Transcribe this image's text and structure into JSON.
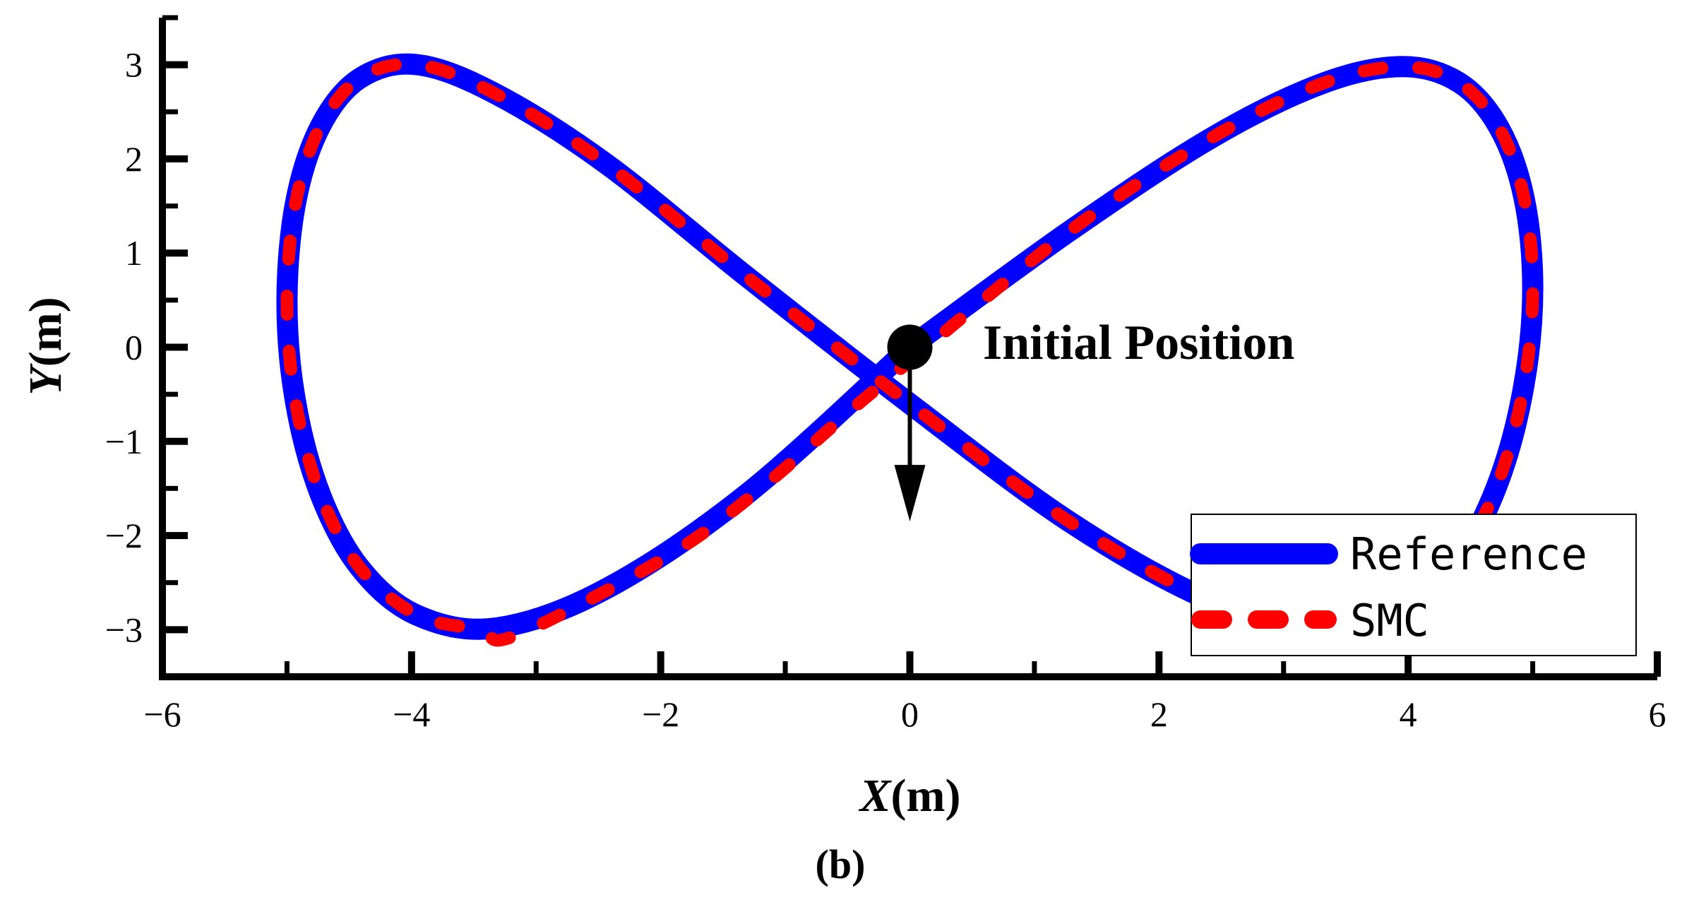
{
  "chart_data": {
    "type": "line",
    "title": "",
    "xlabel": {
      "var": "X",
      "unit": "(m)"
    },
    "ylabel": {
      "var": "Y",
      "unit": "(m)"
    },
    "xlim": [
      -6,
      6
    ],
    "ylim": [
      -3.5,
      3.5
    ],
    "xticks": [
      -6,
      -4,
      -2,
      0,
      2,
      4,
      6
    ],
    "xtick_labels": [
      "−6",
      "−4",
      "−2",
      "0",
      "2",
      "4",
      "6"
    ],
    "yticks": [
      -3,
      -2,
      -1,
      0,
      1,
      2,
      3
    ],
    "ytick_labels": [
      "−3",
      "−2",
      "−1",
      "0",
      "1",
      "2",
      "3"
    ],
    "grid": false,
    "legend_position": "bottom-right",
    "series": [
      {
        "name": "Reference",
        "color": "#0000ff",
        "style": "solid",
        "x": [
          0,
          1.3,
          2.43,
          3.31,
          3.95,
          4.41,
          4.73,
          4.93,
          5.0,
          4.93,
          4.73,
          4.41,
          3.95,
          3.31,
          2.43,
          1.3,
          0,
          -1.3,
          -2.43,
          -3.31,
          -3.95,
          -4.41,
          -4.73,
          -4.93,
          -5.0,
          -4.93,
          -4.73,
          -4.41,
          -3.95,
          -3.31,
          -2.43,
          -1.3,
          0
        ],
        "y": [
          0,
          1.25,
          2.23,
          2.8,
          2.98,
          2.81,
          2.33,
          1.59,
          0.63,
          -0.4,
          -1.41,
          -2.25,
          -2.85,
          -3.0,
          -2.7,
          -1.87,
          -0.6,
          0.74,
          1.94,
          2.68,
          3.0,
          2.86,
          2.35,
          1.54,
          0.48,
          -0.59,
          -1.57,
          -2.35,
          -2.85,
          -2.98,
          -2.56,
          -1.55,
          0
        ]
      },
      {
        "name": "SMC",
        "color": "#ff0000",
        "style": "dashed",
        "x": [
          -0.05,
          1.3,
          2.43,
          3.31,
          3.95,
          4.41,
          4.73,
          4.93,
          5.0,
          4.93,
          4.73,
          4.41,
          3.95,
          3.31,
          2.43,
          1.3,
          0,
          -1.3,
          -2.43,
          -3.31,
          -3.95,
          -4.41,
          -4.73,
          -4.93,
          -5.0,
          -4.93,
          -4.73,
          -4.41,
          -3.95,
          -3.45,
          -3.25,
          -2.6,
          -1.8,
          -1.15,
          -0.5,
          -0.05
        ],
        "y": [
          -0.2,
          1.25,
          2.23,
          2.8,
          2.98,
          2.81,
          2.33,
          1.59,
          0.63,
          -0.4,
          -1.41,
          -2.25,
          -2.85,
          -3.0,
          -2.7,
          -1.87,
          -0.6,
          0.74,
          1.94,
          2.68,
          3.0,
          2.86,
          2.35,
          1.54,
          0.48,
          -0.59,
          -1.57,
          -2.35,
          -2.85,
          -3.0,
          -3.1,
          -2.7,
          -2.1,
          -1.45,
          -0.7,
          -0.2
        ]
      }
    ],
    "annotations": [
      {
        "text": "Initial Position",
        "x": 0,
        "y": 0,
        "marker": "circle",
        "arrow_to": [
          0,
          -1.85
        ]
      }
    ],
    "caption": "(b)"
  }
}
